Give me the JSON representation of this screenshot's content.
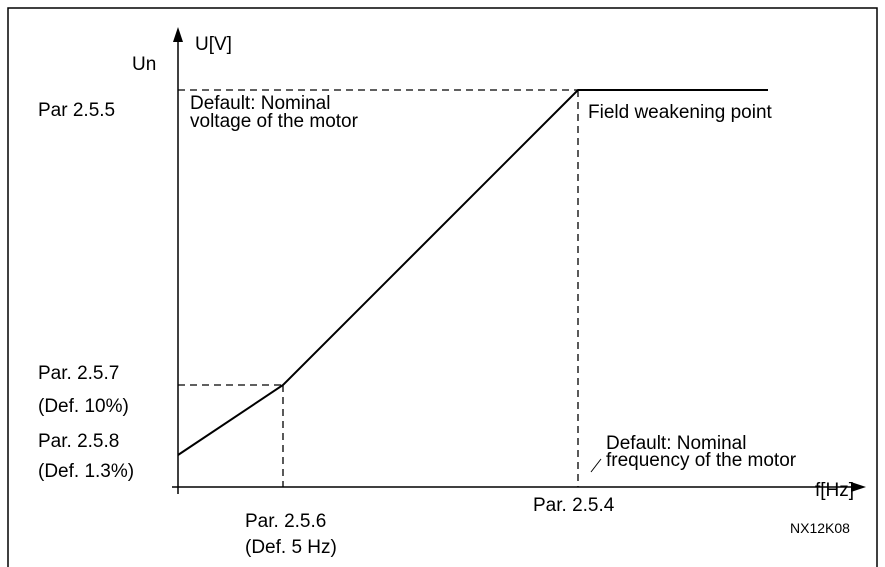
{
  "axes": {
    "y_label": "U[V]",
    "x_label": "f[Hz]"
  },
  "labels": {
    "un": "Un",
    "par_255": "Par 2.5.5",
    "default_voltage_1": "Default: Nominal",
    "default_voltage_2": "voltage of the motor",
    "field_weakening": "Field weakening point",
    "par_257": "Par. 2.5.7",
    "def_257": "(Def. 10%)",
    "par_258": "Par. 2.5.8",
    "def_258": "(Def. 1.3%)",
    "default_freq_1": "Default: Nominal",
    "default_freq_2": "frequency of the motor",
    "par_256": "Par. 2.5.6",
    "def_256": "(Def. 5 Hz)",
    "par_254": "Par. 2.5.4",
    "code": "NX12K08"
  }
}
